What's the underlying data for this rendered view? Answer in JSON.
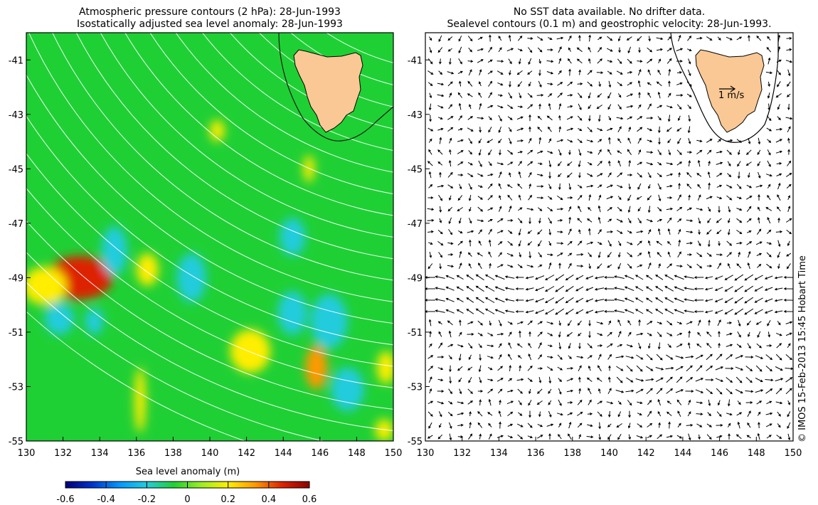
{
  "left_panel": {
    "title_line1": "Atmospheric pressure contours (2 hPa): 28-Jun-1993",
    "title_line2": "Isostatically adjusted sea level anomaly: 28-Jun-1993",
    "x_ticks": [
      "130",
      "132",
      "134",
      "136",
      "138",
      "140",
      "142",
      "144",
      "146",
      "148",
      "150"
    ],
    "y_ticks": [
      "-41",
      "-43",
      "-45",
      "-47",
      "-49",
      "-51",
      "-53",
      "-55"
    ],
    "background_color": "#1fd035",
    "land_color": "#f9c894",
    "anomaly_blobs": [
      {
        "lon": 132.9,
        "lat": -49.0,
        "rx": 1.8,
        "ry": 0.8,
        "value": 0.4
      },
      {
        "lon": 131.0,
        "lat": -49.3,
        "rx": 1.2,
        "ry": 0.7,
        "value": 0.2
      },
      {
        "lon": 134.8,
        "lat": -48.0,
        "rx": 0.7,
        "ry": 0.9,
        "value": -0.2
      },
      {
        "lon": 136.6,
        "lat": -48.7,
        "rx": 0.6,
        "ry": 0.6,
        "value": 0.2
      },
      {
        "lon": 139.0,
        "lat": -49.0,
        "rx": 0.8,
        "ry": 0.9,
        "value": -0.2
      },
      {
        "lon": 131.8,
        "lat": -50.5,
        "rx": 0.8,
        "ry": 0.6,
        "value": -0.15
      },
      {
        "lon": 133.7,
        "lat": -50.6,
        "rx": 0.5,
        "ry": 0.5,
        "value": -0.2
      },
      {
        "lon": 140.4,
        "lat": -43.6,
        "rx": 0.4,
        "ry": 0.4,
        "value": 0.15
      },
      {
        "lon": 142.2,
        "lat": -51.7,
        "rx": 1.1,
        "ry": 0.8,
        "value": 0.2
      },
      {
        "lon": 144.5,
        "lat": -47.5,
        "rx": 0.7,
        "ry": 0.7,
        "value": -0.15
      },
      {
        "lon": 146.5,
        "lat": -50.6,
        "rx": 1.0,
        "ry": 1.0,
        "value": -0.2
      },
      {
        "lon": 144.5,
        "lat": -50.3,
        "rx": 0.8,
        "ry": 0.8,
        "value": -0.15
      },
      {
        "lon": 145.8,
        "lat": -52.3,
        "rx": 0.6,
        "ry": 0.8,
        "value": 0.3
      },
      {
        "lon": 147.5,
        "lat": -53.1,
        "rx": 0.9,
        "ry": 0.8,
        "value": -0.25
      },
      {
        "lon": 149.6,
        "lat": -52.3,
        "rx": 0.5,
        "ry": 0.6,
        "value": 0.2
      },
      {
        "lon": 136.2,
        "lat": -53.5,
        "rx": 0.3,
        "ry": 1.2,
        "value": 0.15
      },
      {
        "lon": 145.4,
        "lat": -45.0,
        "rx": 0.3,
        "ry": 0.5,
        "value": 0.15
      },
      {
        "lon": 149.5,
        "lat": -54.6,
        "rx": 0.5,
        "ry": 0.4,
        "value": 0.15
      }
    ]
  },
  "right_panel": {
    "title_line1": "No SST data available.  No drifter data.",
    "title_line2": "Sealevel contours (0.1 m) and geostrophic velocity: 28-Jun-1993.",
    "x_ticks": [
      "130",
      "132",
      "134",
      "136",
      "138",
      "140",
      "142",
      "144",
      "146",
      "148",
      "150"
    ],
    "y_ticks": [
      "-41",
      "-43",
      "-45",
      "-47",
      "-49",
      "-51",
      "-53",
      "-55"
    ],
    "scale_label": "1 m/s",
    "land_color": "#f9c894"
  },
  "colorbar": {
    "label": "Sea level anomaly (m)",
    "ticks": [
      "-0.6",
      "-0.4",
      "-0.2",
      "0",
      "0.2",
      "0.4",
      "0.6"
    ],
    "min": -0.6,
    "max": 0.6,
    "colors": [
      "#00007a",
      "#0033cc",
      "#0099ff",
      "#22ccdd",
      "#1fd035",
      "#99ee22",
      "#ffee00",
      "#ff9900",
      "#dd2200",
      "#8b0000"
    ]
  },
  "map_extent": {
    "lon_min": 130,
    "lon_max": 150,
    "lat_min": -55,
    "lat_max": -40
  },
  "credit": "© IMOS 15-Feb-2013 15:45 Hobart Time"
}
